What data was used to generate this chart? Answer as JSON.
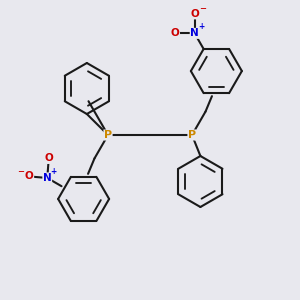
{
  "bg_color": "#e8e8ee",
  "bond_color": "#1a1a1a",
  "P_color": "#cc8800",
  "N_color": "#0000dd",
  "O_color": "#cc0000",
  "lw": 1.5,
  "fig_w": 3.0,
  "fig_h": 3.0,
  "dpi": 100,
  "xlim": [
    0,
    10
  ],
  "ylim": [
    0,
    10
  ]
}
